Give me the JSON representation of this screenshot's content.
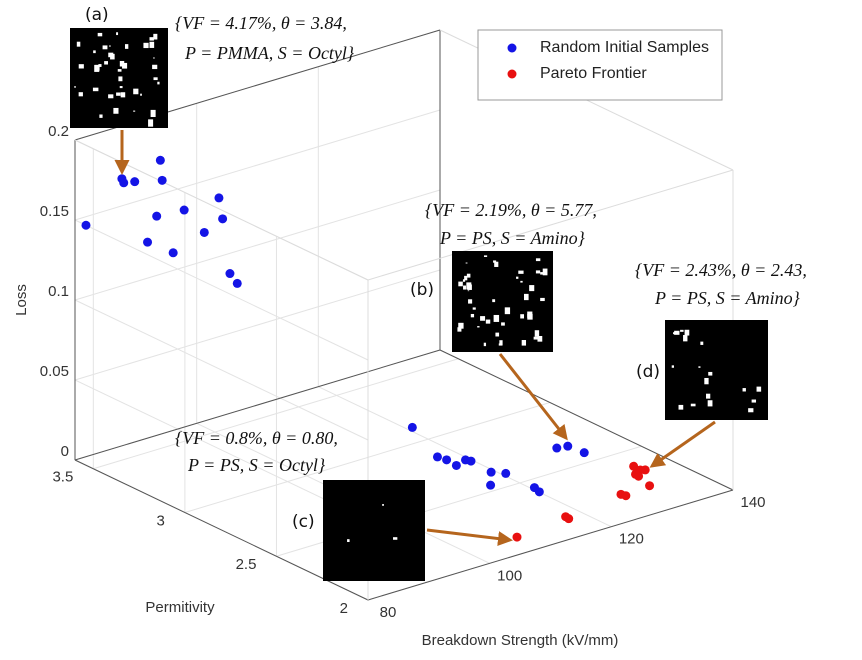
{
  "chart_data": {
    "type": "scatter3d",
    "xlabel": "Breakdown Strength (kV/mm)",
    "ylabel": "Permitivity",
    "zlabel": "Loss",
    "xlim": [
      80,
      140
    ],
    "xticks": [
      80,
      100,
      120,
      140
    ],
    "ylim": [
      2,
      3.6
    ],
    "yticks": [
      2,
      2.5,
      3,
      3.5
    ],
    "zlim": [
      0,
      0.2
    ],
    "zticks": [
      0,
      0.05,
      0.1,
      0.15,
      0.2
    ],
    "grid": true,
    "legend": "upper right",
    "series": [
      {
        "name": "Random Initial Samples",
        "color": "#1414e6",
        "x": [
          85,
          85,
          85,
          85,
          85,
          80,
          85,
          85,
          85,
          85,
          85,
          85,
          85,
          85,
          85,
          119.2,
          115.5,
          115.8,
          115.6,
          117.7,
          118.0,
          117.7,
          118.9,
          114.9,
          118.8,
          118.4,
          129.4,
          130.9,
          131.2
        ],
        "y": [
          3.51,
          3.5,
          3.44,
          3.3,
          3.29,
          3.54,
          3.37,
          3.32,
          3.23,
          3.17,
          3.06,
          2.98,
          2.96,
          2.92,
          2.88,
          3.06,
          2.8,
          2.76,
          2.7,
          2.72,
          2.7,
          2.58,
          2.54,
          2.49,
          2.38,
          2.34,
          2.61,
          2.6,
          2.52
        ],
        "z": [
          0.175,
          0.173,
          0.177,
          0.198,
          0.186,
          0.15,
          0.143,
          0.162,
          0.144,
          0.174,
          0.166,
          0.192,
          0.18,
          0.148,
          0.144,
          0.005,
          0.005,
          0.005,
          0.005,
          0.005,
          0.005,
          0.005,
          0.005,
          0.005,
          0.005,
          0.005,
          0.005,
          0.005,
          0.005
        ]
      },
      {
        "name": "Pareto Frontier",
        "color": "#e81010",
        "x": [
          106.6,
          115.8,
          115.7,
          126.1,
          126.3,
          133.3,
          133.2,
          131.7,
          133.7,
          130.8,
          131.8
        ],
        "y": [
          2.07,
          2.11,
          2.09,
          2.15,
          2.13,
          2.32,
          2.28,
          2.24,
          2.27,
          2.15,
          2.26
        ],
        "z": [
          0.005,
          0.005,
          0.005,
          0.005,
          0.005,
          0.005,
          0.005,
          0.005,
          0.005,
          0.005,
          0.005
        ]
      }
    ],
    "annotations": [
      {
        "label": "(a)",
        "lines": [
          "{VF = 4.17%, θ = 3.84,",
          "P = PMMA, S = Octyl}"
        ]
      },
      {
        "label": "(b)",
        "lines": [
          "{VF = 2.19%, θ = 5.77,",
          "P = PS, S = Amino}"
        ]
      },
      {
        "label": "(c)",
        "lines": [
          "{VF = 0.8%, θ = 0.80,",
          "P = PS, S = Octyl}"
        ]
      },
      {
        "label": "(d)",
        "lines": [
          "{VF = 2.43%, θ = 2.43,",
          "P = PS, S = Amino}"
        ]
      }
    ]
  }
}
